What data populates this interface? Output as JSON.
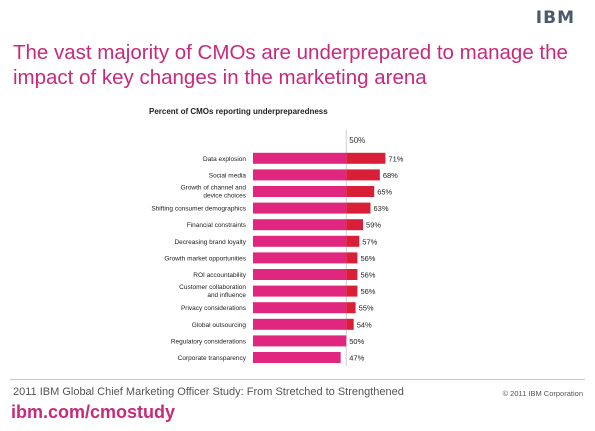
{
  "brand": {
    "logo": "IBM"
  },
  "headline": "The vast majority of CMOs are underprepared to manage the impact of key changes in the marketing arena",
  "footer": {
    "source": "2011 IBM Global Chief Marketing Officer Study: From Stretched to Strengthened",
    "copyright": "© 2011 IBM Corporation",
    "link": "ibm.com/cmostudy"
  },
  "colors": {
    "pink": "#e0267f",
    "red": "#d81f37",
    "headline": "#c7297c",
    "guide": "#cfcfcf"
  },
  "chart_data": {
    "type": "bar",
    "orientation": "horizontal",
    "title": "Percent of CMOs reporting underpreparedness",
    "reference_label": "50%",
    "reference_value": 50,
    "categories": [
      [
        "Data explosion"
      ],
      [
        "Social media"
      ],
      [
        "Growth of channel and",
        "device choices"
      ],
      [
        "Shifting consumer demographics"
      ],
      [
        "Financial constraints"
      ],
      [
        "Decreasing brand loyalty"
      ],
      [
        "Growth market opportunities"
      ],
      [
        "ROI accountability"
      ],
      [
        "Customer collaboration",
        "and influence"
      ],
      [
        "Privacy considerations"
      ],
      [
        "Global outsourcing"
      ],
      [
        "Regulatory considerations"
      ],
      [
        "Corporate transparency"
      ]
    ],
    "values": [
      71,
      68,
      65,
      63,
      59,
      57,
      56,
      56,
      56,
      55,
      54,
      50,
      47
    ],
    "value_labels": [
      "71%",
      "68%",
      "65%",
      "63%",
      "59%",
      "57%",
      "56%",
      "56%",
      "56%",
      "55%",
      "54%",
      "50%",
      "47%"
    ],
    "xlim": [
      0,
      100
    ]
  }
}
